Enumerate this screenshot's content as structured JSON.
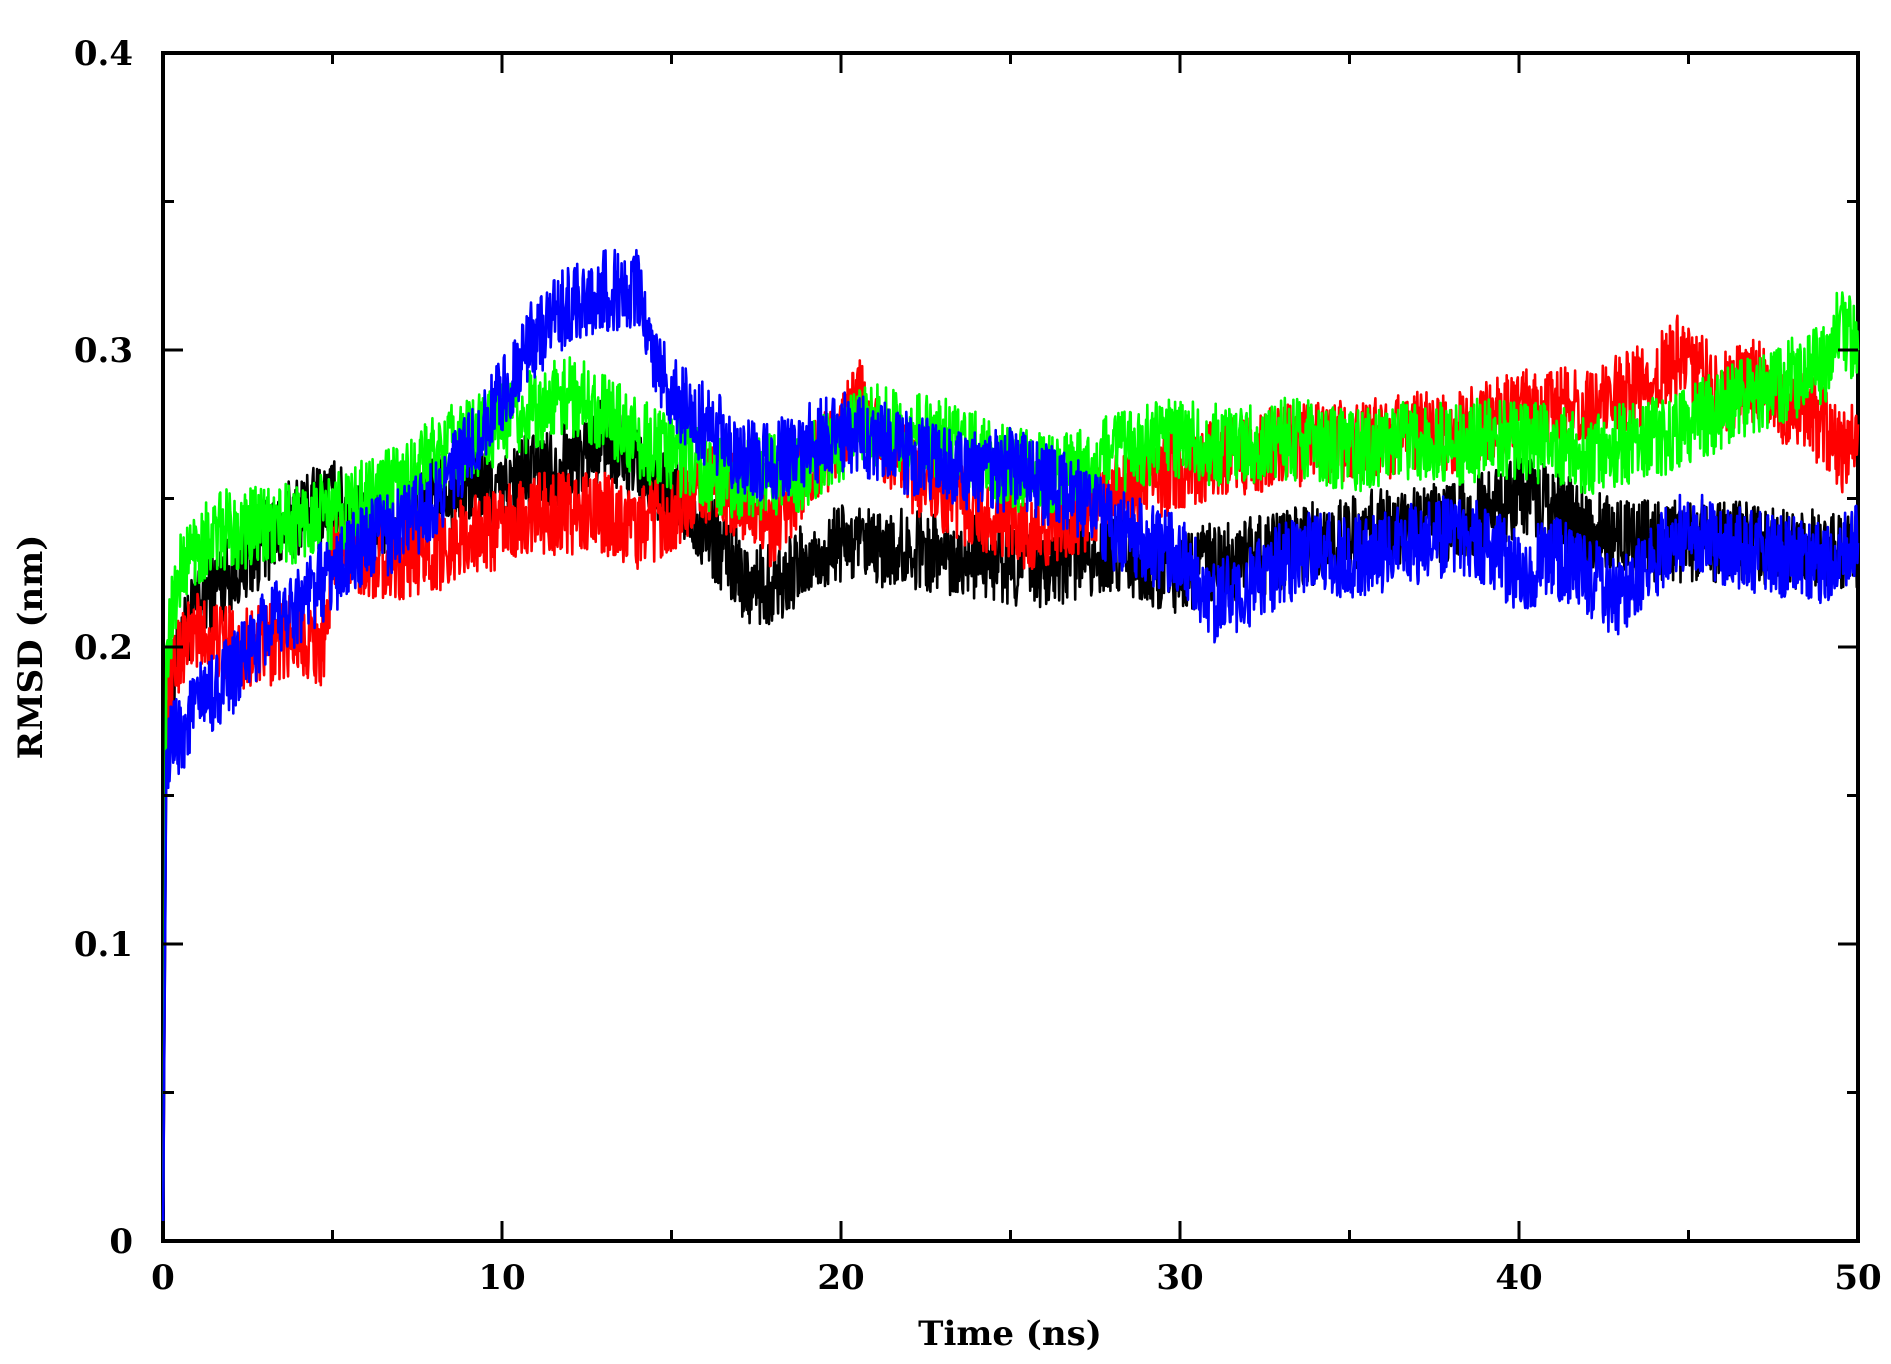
{
  "chart_data": {
    "type": "line",
    "title": "",
    "xlabel": "Time (ns)",
    "ylabel": "RMSD (nm)",
    "xlim": [
      0,
      50
    ],
    "ylim": [
      0,
      0.4
    ],
    "xticks": [
      0,
      10,
      20,
      30,
      40,
      50
    ],
    "yticks": [
      0,
      0.1,
      0.2,
      0.3,
      0.4
    ],
    "xtick_labels": [
      "0",
      "10",
      "20",
      "30",
      "40",
      "50"
    ],
    "ytick_labels": [
      "0",
      "0.1",
      "0.2",
      "0.3",
      "0.4"
    ],
    "grid": false,
    "legend": "none",
    "series": [
      {
        "color": "#000000",
        "x": [
          0,
          0.1,
          0.5,
          1,
          2,
          3,
          4,
          5,
          6,
          7,
          8,
          9,
          10,
          11,
          12,
          13,
          14,
          15,
          16,
          17,
          17.5,
          18,
          19,
          20,
          21,
          22,
          23,
          24,
          25,
          26,
          27,
          28,
          29,
          30,
          31,
          32,
          33,
          34,
          35,
          36,
          37,
          38,
          39,
          40,
          41,
          42,
          43,
          44,
          45,
          46,
          47,
          48,
          49,
          50
        ],
        "y": [
          0.0,
          0.17,
          0.2,
          0.215,
          0.225,
          0.235,
          0.245,
          0.25,
          0.24,
          0.245,
          0.25,
          0.255,
          0.252,
          0.26,
          0.262,
          0.27,
          0.26,
          0.25,
          0.24,
          0.225,
          0.22,
          0.222,
          0.228,
          0.235,
          0.232,
          0.233,
          0.232,
          0.23,
          0.228,
          0.226,
          0.23,
          0.232,
          0.228,
          0.225,
          0.228,
          0.23,
          0.233,
          0.235,
          0.237,
          0.24,
          0.24,
          0.242,
          0.245,
          0.25,
          0.248,
          0.24,
          0.238,
          0.235,
          0.236,
          0.235,
          0.235,
          0.233,
          0.232,
          0.232
        ]
      },
      {
        "color": "#ff0000",
        "x": [
          0,
          0.1,
          0.5,
          1,
          2,
          3,
          4,
          4.8,
          5,
          6,
          7,
          8,
          9,
          10,
          11,
          12,
          13,
          14,
          15,
          16,
          17,
          18,
          19,
          20,
          20.5,
          21,
          22,
          23,
          24,
          25,
          26,
          27,
          28,
          29,
          30,
          31,
          32,
          33,
          34,
          35,
          36,
          37,
          38,
          39,
          40,
          41,
          42,
          43,
          44,
          44.8,
          45,
          46,
          47,
          48,
          49,
          49.5,
          50
        ],
        "y": [
          0.0,
          0.18,
          0.2,
          0.205,
          0.2,
          0.2,
          0.205,
          0.2,
          0.235,
          0.23,
          0.23,
          0.232,
          0.238,
          0.24,
          0.245,
          0.245,
          0.245,
          0.24,
          0.245,
          0.255,
          0.25,
          0.24,
          0.26,
          0.27,
          0.285,
          0.27,
          0.26,
          0.25,
          0.245,
          0.24,
          0.24,
          0.245,
          0.25,
          0.255,
          0.26,
          0.262,
          0.265,
          0.268,
          0.268,
          0.27,
          0.27,
          0.272,
          0.272,
          0.275,
          0.28,
          0.28,
          0.282,
          0.285,
          0.29,
          0.3,
          0.295,
          0.285,
          0.29,
          0.28,
          0.275,
          0.265,
          0.275
        ]
      },
      {
        "color": "#00ff00",
        "x": [
          0,
          0.1,
          0.5,
          1,
          2,
          3,
          4,
          5,
          6,
          7,
          8,
          9,
          10,
          11,
          12,
          13,
          14,
          15,
          16,
          17,
          18,
          19,
          20,
          21,
          22,
          23,
          24,
          25,
          26,
          27,
          28,
          29,
          30,
          31,
          32,
          33,
          34,
          35,
          36,
          37,
          38,
          39,
          40,
          41,
          42,
          43,
          44,
          45,
          46,
          47,
          48,
          49,
          49.5,
          50
        ],
        "y": [
          0.0,
          0.2,
          0.225,
          0.235,
          0.24,
          0.24,
          0.242,
          0.245,
          0.25,
          0.255,
          0.265,
          0.27,
          0.275,
          0.28,
          0.285,
          0.28,
          0.27,
          0.265,
          0.26,
          0.255,
          0.258,
          0.26,
          0.27,
          0.275,
          0.272,
          0.27,
          0.265,
          0.26,
          0.258,
          0.26,
          0.265,
          0.268,
          0.27,
          0.268,
          0.268,
          0.27,
          0.27,
          0.265,
          0.268,
          0.27,
          0.268,
          0.27,
          0.27,
          0.268,
          0.265,
          0.268,
          0.27,
          0.275,
          0.28,
          0.285,
          0.29,
          0.295,
          0.31,
          0.3
        ]
      },
      {
        "color": "#0000ff",
        "x": [
          0,
          0.1,
          0.5,
          1,
          2,
          3,
          4,
          5,
          6,
          7,
          8,
          9,
          10,
          11,
          12,
          13,
          14,
          14.5,
          15,
          16,
          17,
          18,
          19,
          20,
          21,
          22,
          23,
          24,
          25,
          26,
          27,
          28,
          29,
          30,
          31,
          32,
          33,
          34,
          35,
          36,
          37,
          38,
          39,
          40,
          41,
          42,
          43,
          44,
          45,
          46,
          47,
          48,
          49,
          50
        ],
        "y": [
          0.0,
          0.165,
          0.17,
          0.18,
          0.19,
          0.205,
          0.215,
          0.225,
          0.235,
          0.24,
          0.25,
          0.265,
          0.285,
          0.305,
          0.315,
          0.32,
          0.32,
          0.3,
          0.285,
          0.275,
          0.265,
          0.262,
          0.268,
          0.272,
          0.27,
          0.265,
          0.262,
          0.258,
          0.26,
          0.255,
          0.25,
          0.24,
          0.235,
          0.23,
          0.215,
          0.22,
          0.228,
          0.232,
          0.23,
          0.232,
          0.235,
          0.238,
          0.235,
          0.225,
          0.23,
          0.225,
          0.215,
          0.23,
          0.24,
          0.235,
          0.232,
          0.23,
          0.228,
          0.235
        ]
      }
    ]
  }
}
